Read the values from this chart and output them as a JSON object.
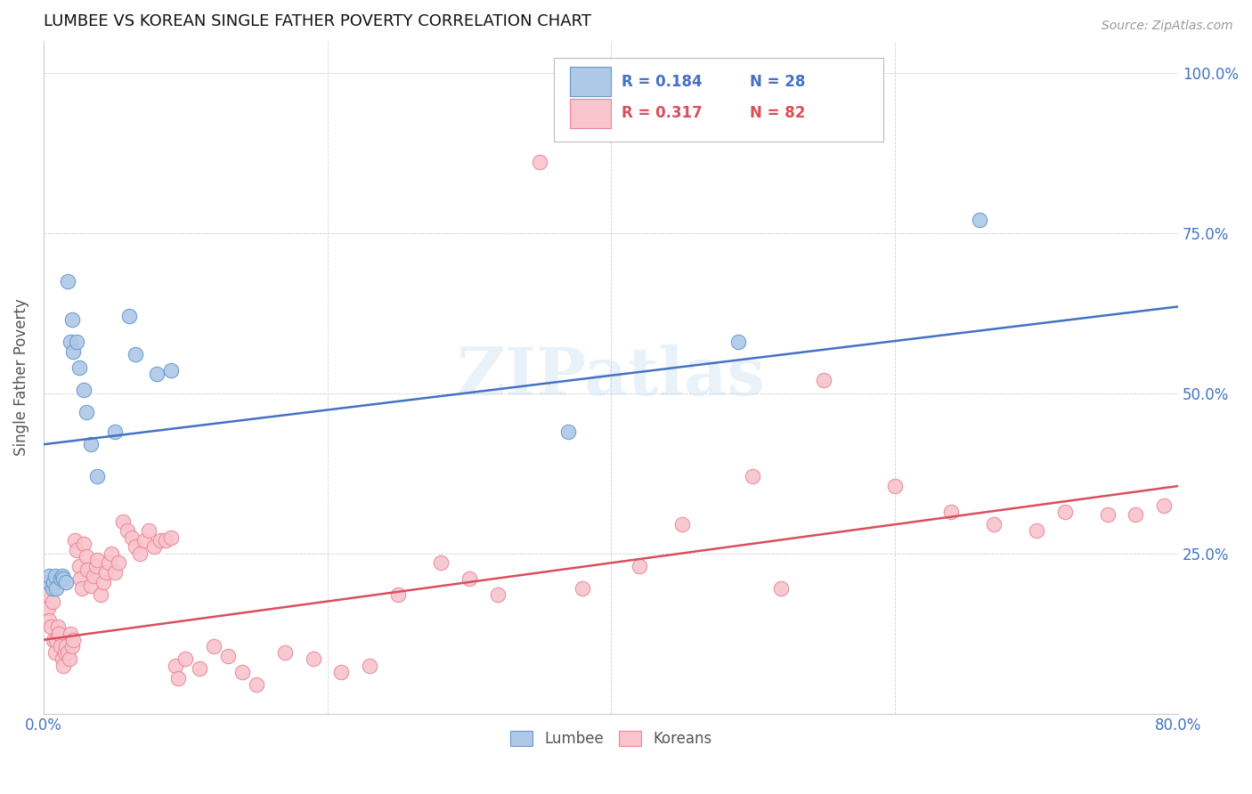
{
  "title": "LUMBEE VS KOREAN SINGLE FATHER POVERTY CORRELATION CHART",
  "source": "Source: ZipAtlas.com",
  "ylabel": "Single Father Poverty",
  "x_min": 0.0,
  "x_max": 0.8,
  "y_min": 0.0,
  "y_max": 1.05,
  "lumbee_color": "#aec8e8",
  "korean_color": "#f9c4cc",
  "lumbee_edge_color": "#6699cc",
  "korean_edge_color": "#e88899",
  "lumbee_line_color": "#4472c4",
  "korean_line_color": "#d94f5c",
  "tick_color": "#4472c4",
  "lumbee_R": 0.184,
  "lumbee_N": 28,
  "korean_R": 0.317,
  "korean_N": 82,
  "lumbee_line_start_y": 0.42,
  "lumbee_line_end_y": 0.635,
  "korean_line_start_y": 0.115,
  "korean_line_end_y": 0.355,
  "lumbee_x": [
    0.003,
    0.004,
    0.006,
    0.007,
    0.008,
    0.009,
    0.012,
    0.013,
    0.014,
    0.016,
    0.017,
    0.019,
    0.02,
    0.021,
    0.023,
    0.025,
    0.028,
    0.03,
    0.033,
    0.038,
    0.05,
    0.06,
    0.065,
    0.08,
    0.09,
    0.37,
    0.49,
    0.66
  ],
  "lumbee_y": [
    0.205,
    0.215,
    0.195,
    0.205,
    0.215,
    0.195,
    0.21,
    0.215,
    0.21,
    0.205,
    0.675,
    0.58,
    0.615,
    0.565,
    0.58,
    0.54,
    0.505,
    0.47,
    0.42,
    0.37,
    0.44,
    0.62,
    0.56,
    0.53,
    0.535,
    0.44,
    0.58,
    0.77
  ],
  "korean_x": [
    0.001,
    0.002,
    0.003,
    0.004,
    0.005,
    0.006,
    0.007,
    0.008,
    0.009,
    0.01,
    0.011,
    0.012,
    0.013,
    0.014,
    0.015,
    0.016,
    0.017,
    0.018,
    0.019,
    0.02,
    0.021,
    0.022,
    0.023,
    0.025,
    0.026,
    0.027,
    0.028,
    0.03,
    0.031,
    0.033,
    0.035,
    0.037,
    0.038,
    0.04,
    0.042,
    0.044,
    0.046,
    0.048,
    0.05,
    0.053,
    0.056,
    0.059,
    0.062,
    0.065,
    0.068,
    0.071,
    0.074,
    0.078,
    0.082,
    0.086,
    0.09,
    0.093,
    0.095,
    0.1,
    0.11,
    0.12,
    0.13,
    0.14,
    0.15,
    0.17,
    0.19,
    0.21,
    0.23,
    0.25,
    0.28,
    0.3,
    0.32,
    0.35,
    0.38,
    0.42,
    0.45,
    0.5,
    0.52,
    0.55,
    0.6,
    0.64,
    0.67,
    0.7,
    0.72,
    0.75,
    0.77,
    0.79
  ],
  "korean_y": [
    0.195,
    0.185,
    0.165,
    0.145,
    0.135,
    0.175,
    0.115,
    0.095,
    0.115,
    0.135,
    0.125,
    0.105,
    0.085,
    0.075,
    0.095,
    0.105,
    0.095,
    0.085,
    0.125,
    0.105,
    0.115,
    0.27,
    0.255,
    0.23,
    0.21,
    0.195,
    0.265,
    0.245,
    0.225,
    0.2,
    0.215,
    0.23,
    0.24,
    0.185,
    0.205,
    0.22,
    0.235,
    0.25,
    0.22,
    0.235,
    0.3,
    0.285,
    0.275,
    0.26,
    0.25,
    0.27,
    0.285,
    0.26,
    0.27,
    0.27,
    0.275,
    0.075,
    0.055,
    0.085,
    0.07,
    0.105,
    0.09,
    0.065,
    0.045,
    0.095,
    0.085,
    0.065,
    0.075,
    0.185,
    0.235,
    0.21,
    0.185,
    0.86,
    0.195,
    0.23,
    0.295,
    0.37,
    0.195,
    0.52,
    0.355,
    0.315,
    0.295,
    0.285,
    0.315,
    0.31,
    0.31,
    0.325
  ]
}
